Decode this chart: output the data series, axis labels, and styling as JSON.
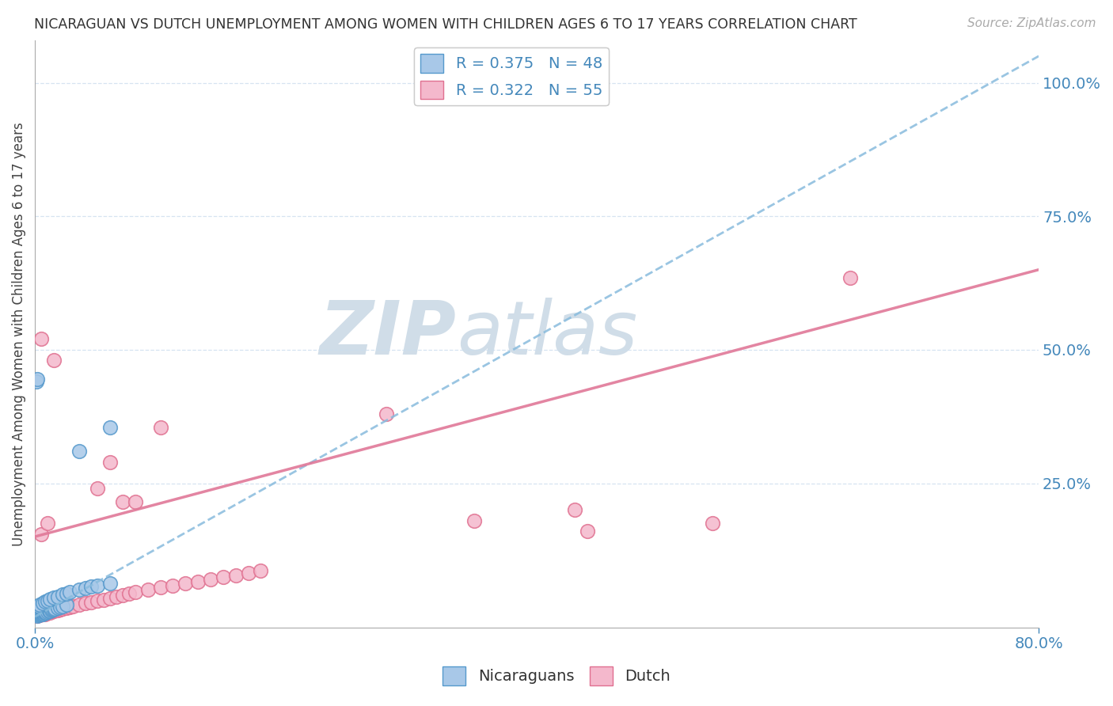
{
  "title": "NICARAGUAN VS DUTCH UNEMPLOYMENT AMONG WOMEN WITH CHILDREN AGES 6 TO 17 YEARS CORRELATION CHART",
  "source": "Source: ZipAtlas.com",
  "ylabel": "Unemployment Among Women with Children Ages 6 to 17 years",
  "right_yticks": [
    0.25,
    0.5,
    0.75,
    1.0
  ],
  "right_yticklabels": [
    "25.0%",
    "50.0%",
    "75.0%",
    "100.0%"
  ],
  "xtick_left": "0.0%",
  "xtick_right": "80.0%",
  "xlim": [
    0.0,
    0.8
  ],
  "ylim": [
    -0.02,
    1.08
  ],
  "nic_color": "#a8c8e8",
  "nic_edge": "#5599cc",
  "dut_color": "#f4b8cc",
  "dut_edge": "#e07090",
  "blue_line_color": "#88bbdd",
  "pink_line_color": "#e07898",
  "grid_color": "#ccddee",
  "watermark_color": "#d0dde8",
  "legend1_label1": "R = 0.375   N = 48",
  "legend1_label2": "R = 0.322   N = 55",
  "legend2_label1": "Nicaraguans",
  "legend2_label2": "Dutch",
  "blue_line": {
    "x0": 0.0,
    "y0": 0.0,
    "x1": 0.8,
    "y1": 1.05
  },
  "pink_line": {
    "x0": 0.0,
    "y0": 0.15,
    "x1": 0.8,
    "y1": 0.65
  },
  "nicaraguan_points": [
    [
      0.001,
      0.003
    ],
    [
      0.001,
      0.005
    ],
    [
      0.002,
      0.002
    ],
    [
      0.002,
      0.004
    ],
    [
      0.003,
      0.003
    ],
    [
      0.003,
      0.006
    ],
    [
      0.004,
      0.004
    ],
    [
      0.004,
      0.007
    ],
    [
      0.005,
      0.005
    ],
    [
      0.005,
      0.008
    ],
    [
      0.006,
      0.005
    ],
    [
      0.006,
      0.008
    ],
    [
      0.007,
      0.006
    ],
    [
      0.007,
      0.009
    ],
    [
      0.008,
      0.007
    ],
    [
      0.008,
      0.01
    ],
    [
      0.009,
      0.008
    ],
    [
      0.01,
      0.009
    ],
    [
      0.011,
      0.01
    ],
    [
      0.012,
      0.011
    ],
    [
      0.013,
      0.012
    ],
    [
      0.014,
      0.013
    ],
    [
      0.015,
      0.014
    ],
    [
      0.016,
      0.015
    ],
    [
      0.018,
      0.016
    ],
    [
      0.02,
      0.018
    ],
    [
      0.022,
      0.02
    ],
    [
      0.025,
      0.022
    ],
    [
      0.003,
      0.02
    ],
    [
      0.004,
      0.022
    ],
    [
      0.006,
      0.025
    ],
    [
      0.008,
      0.028
    ],
    [
      0.01,
      0.03
    ],
    [
      0.012,
      0.033
    ],
    [
      0.015,
      0.036
    ],
    [
      0.018,
      0.038
    ],
    [
      0.022,
      0.042
    ],
    [
      0.025,
      0.044
    ],
    [
      0.028,
      0.046
    ],
    [
      0.035,
      0.05
    ],
    [
      0.04,
      0.054
    ],
    [
      0.045,
      0.056
    ],
    [
      0.05,
      0.058
    ],
    [
      0.06,
      0.062
    ],
    [
      0.001,
      0.44
    ],
    [
      0.002,
      0.445
    ],
    [
      0.035,
      0.31
    ],
    [
      0.06,
      0.355
    ]
  ],
  "dutch_points": [
    [
      0.002,
      0.002
    ],
    [
      0.003,
      0.004
    ],
    [
      0.004,
      0.003
    ],
    [
      0.005,
      0.005
    ],
    [
      0.006,
      0.004
    ],
    [
      0.007,
      0.006
    ],
    [
      0.008,
      0.005
    ],
    [
      0.009,
      0.007
    ],
    [
      0.01,
      0.007
    ],
    [
      0.011,
      0.009
    ],
    [
      0.012,
      0.008
    ],
    [
      0.013,
      0.01
    ],
    [
      0.015,
      0.01
    ],
    [
      0.016,
      0.012
    ],
    [
      0.018,
      0.012
    ],
    [
      0.02,
      0.014
    ],
    [
      0.022,
      0.015
    ],
    [
      0.025,
      0.017
    ],
    [
      0.028,
      0.018
    ],
    [
      0.03,
      0.02
    ],
    [
      0.035,
      0.022
    ],
    [
      0.04,
      0.025
    ],
    [
      0.045,
      0.027
    ],
    [
      0.05,
      0.03
    ],
    [
      0.055,
      0.032
    ],
    [
      0.06,
      0.035
    ],
    [
      0.065,
      0.038
    ],
    [
      0.07,
      0.04
    ],
    [
      0.075,
      0.043
    ],
    [
      0.08,
      0.046
    ],
    [
      0.09,
      0.05
    ],
    [
      0.1,
      0.055
    ],
    [
      0.11,
      0.058
    ],
    [
      0.12,
      0.062
    ],
    [
      0.13,
      0.065
    ],
    [
      0.14,
      0.07
    ],
    [
      0.15,
      0.074
    ],
    [
      0.16,
      0.078
    ],
    [
      0.17,
      0.082
    ],
    [
      0.18,
      0.086
    ],
    [
      0.015,
      0.48
    ],
    [
      0.005,
      0.52
    ],
    [
      0.06,
      0.29
    ],
    [
      0.1,
      0.355
    ],
    [
      0.005,
      0.155
    ],
    [
      0.01,
      0.175
    ],
    [
      0.07,
      0.215
    ],
    [
      0.08,
      0.215
    ],
    [
      0.05,
      0.24
    ],
    [
      0.28,
      0.38
    ],
    [
      0.35,
      0.18
    ],
    [
      0.43,
      0.2
    ],
    [
      0.44,
      0.16
    ],
    [
      0.54,
      0.175
    ],
    [
      0.65,
      0.635
    ]
  ]
}
